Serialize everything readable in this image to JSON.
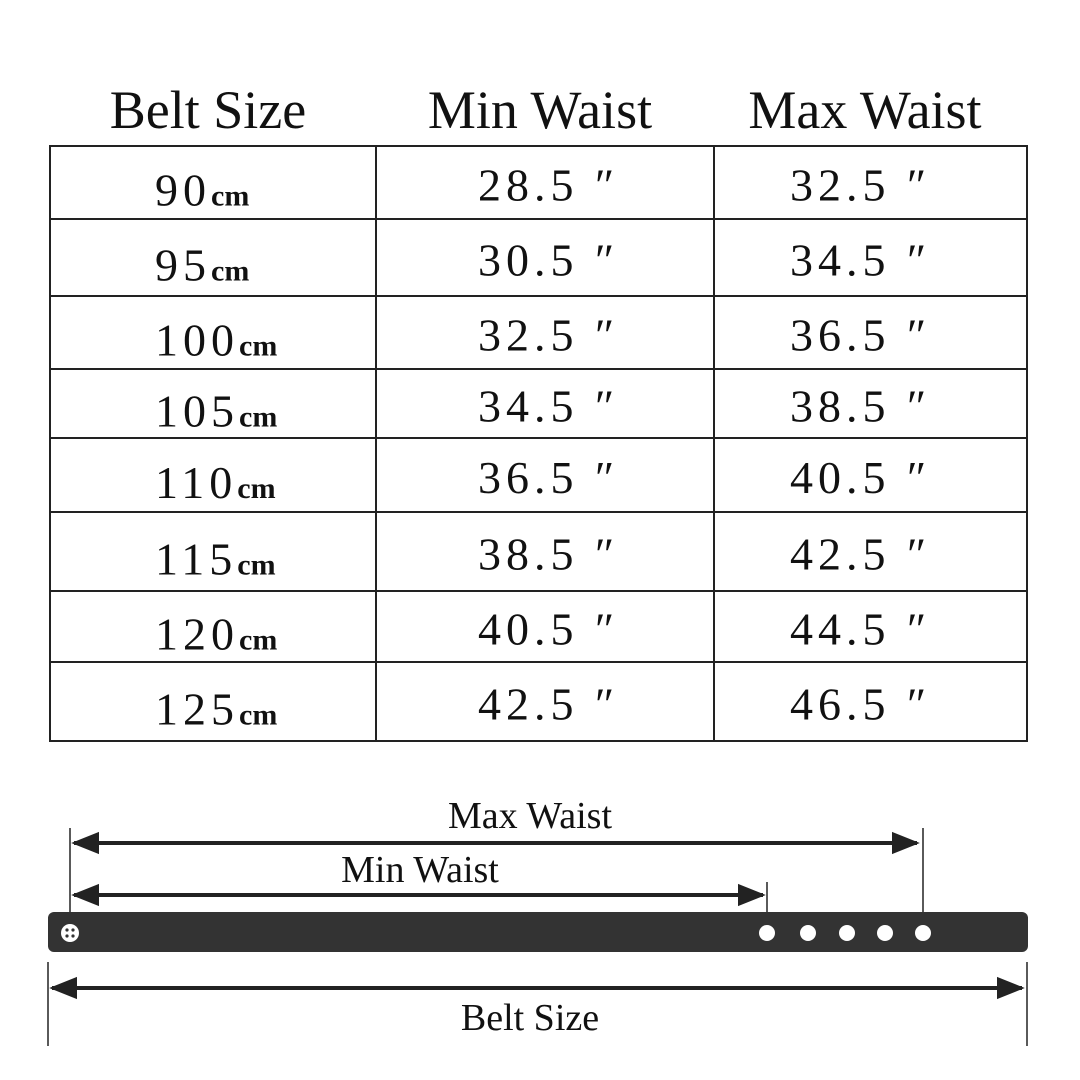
{
  "table": {
    "headers": [
      "Belt Size",
      "Min Waist",
      "Max Waist"
    ],
    "rows": [
      {
        "size": "90",
        "unit": "cm",
        "min": "28.5 ″",
        "max": "32.5 ″"
      },
      {
        "size": "95",
        "unit": "cm",
        "min": "30.5 ″",
        "max": "34.5 ″"
      },
      {
        "size": "100",
        "unit": "cm",
        "min": "32.5 ″",
        "max": "36.5 ″"
      },
      {
        "size": "105",
        "unit": "cm",
        "min": "34.5 ″",
        "max": "38.5 ″"
      },
      {
        "size": "110",
        "unit": "cm",
        "min": "36.5 ″",
        "max": "40.5 ″"
      },
      {
        "size": "115",
        "unit": "cm",
        "min": "38.5 ″",
        "max": "42.5 ″"
      },
      {
        "size": "120",
        "unit": "cm",
        "min": "40.5 ″",
        "max": "44.5 ″"
      },
      {
        "size": "125",
        "unit": "cm",
        "min": "42.5 ″",
        "max": "46.5 ″"
      }
    ]
  },
  "diagram": {
    "max_label": "Max Waist",
    "min_label": "Min Waist",
    "belt_label": "Belt Size"
  }
}
